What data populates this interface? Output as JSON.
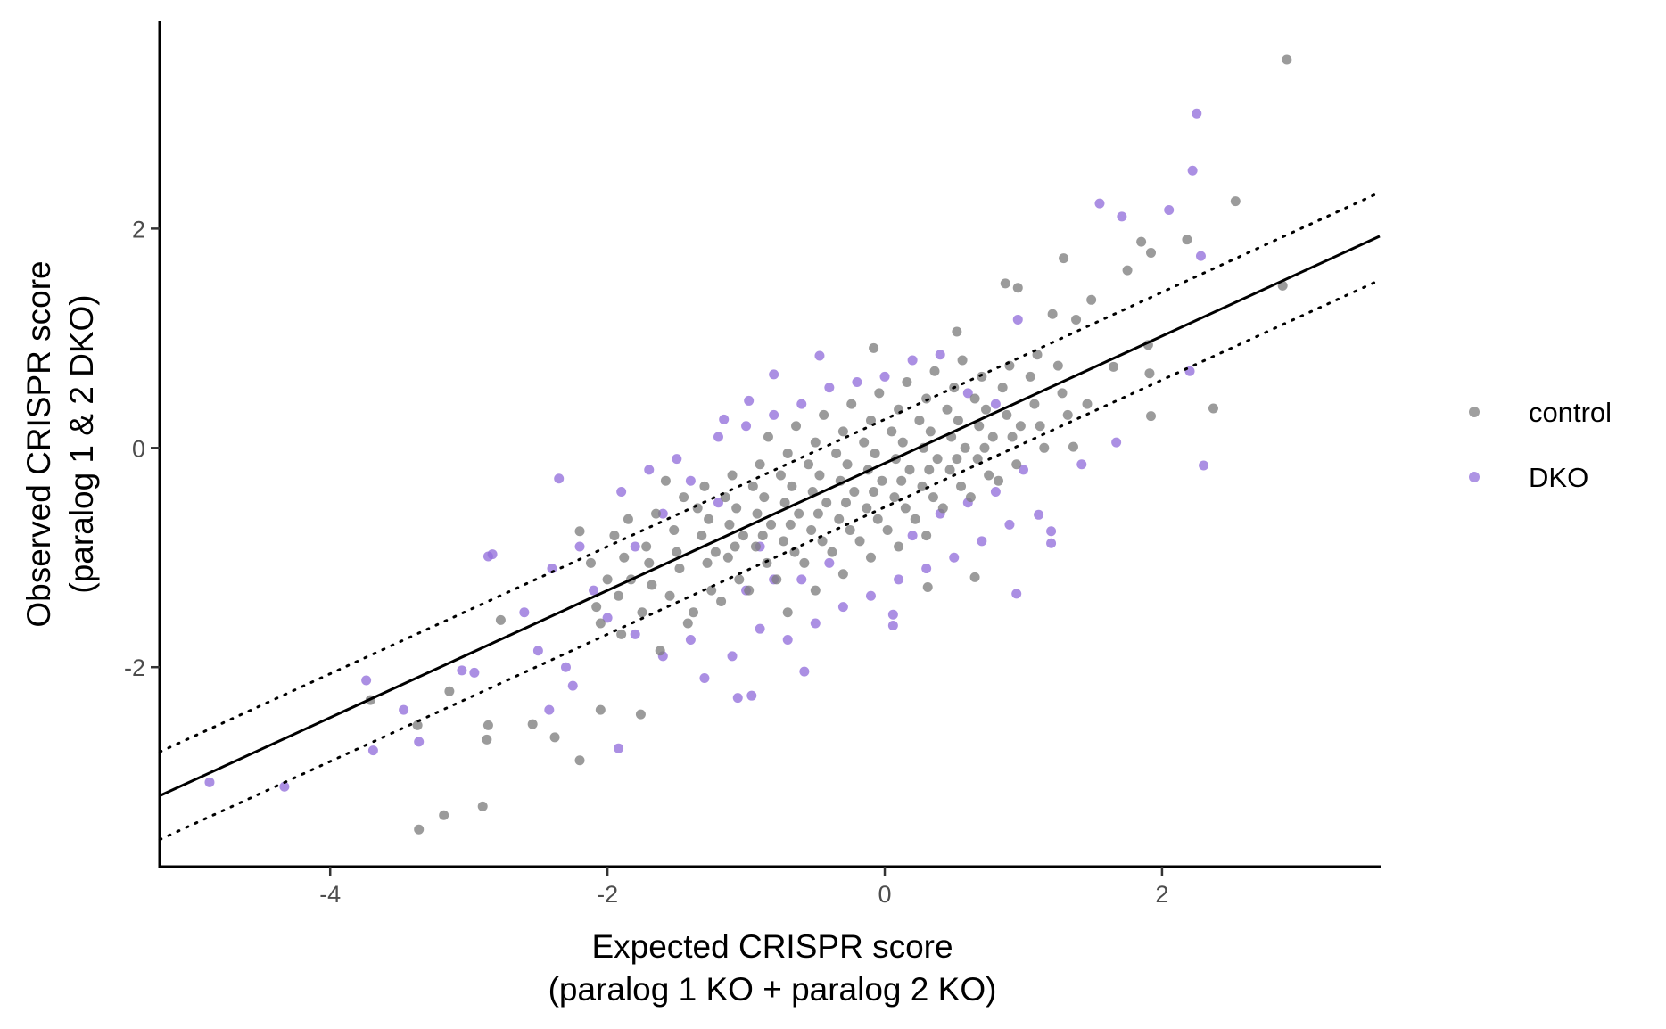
{
  "chart_data": {
    "type": "scatter",
    "title": "",
    "xlabel": "Expected CRISPR score",
    "xlabel2": "(paralog 1 KO + paralog 2 KO)",
    "ylabel": "Observed CRISPR score",
    "ylabel2": "(paralog 1 & 2 DKO)",
    "xlim": [
      -5.23,
      3.57
    ],
    "ylim": [
      -3.82,
      3.89
    ],
    "xticks": [
      -4,
      -2,
      0,
      2
    ],
    "yticks": [
      -2,
      0,
      2
    ],
    "xtick_labels": [
      "-4",
      "-2",
      "0",
      "2"
    ],
    "ytick_labels": [
      "-2",
      "0",
      "2"
    ],
    "grid": false,
    "legend_position": "right",
    "fit_line": {
      "slope": 0.58,
      "intercept": -0.14,
      "style": "solid"
    },
    "band_lines": [
      {
        "offset": 0.4,
        "style": "dotted"
      },
      {
        "offset": -0.4,
        "style": "dotted"
      }
    ],
    "series": [
      {
        "name": "DKO",
        "color": "#9370DB",
        "points": [
          [
            2.25,
            3.05
          ],
          [
            2.22,
            2.53
          ],
          [
            1.55,
            2.23
          ],
          [
            1.71,
            2.11
          ],
          [
            2.05,
            2.17
          ],
          [
            2.28,
            1.75
          ],
          [
            2.2,
            0.7
          ],
          [
            2.3,
            -0.16
          ],
          [
            1.67,
            0.05
          ],
          [
            1.42,
            -0.15
          ],
          [
            0.96,
            1.17
          ],
          [
            0.95,
            -1.33
          ],
          [
            1.2,
            -0.76
          ],
          [
            1.2,
            -0.87
          ],
          [
            1.11,
            -0.61
          ],
          [
            -4.87,
            -3.05
          ],
          [
            -4.33,
            -3.09
          ],
          [
            -3.74,
            -2.12
          ],
          [
            -3.69,
            -2.76
          ],
          [
            -3.47,
            -2.39
          ],
          [
            -3.36,
            -2.68
          ],
          [
            -3.05,
            -2.03
          ],
          [
            -2.96,
            -2.05
          ],
          [
            -2.86,
            -0.99
          ],
          [
            -2.83,
            -0.97
          ],
          [
            -2.35,
            -0.28
          ],
          [
            -1.92,
            -2.74
          ],
          [
            -1.06,
            -2.28
          ],
          [
            -0.96,
            -2.26
          ],
          [
            -0.58,
            -2.04
          ],
          [
            -2.42,
            -2.39
          ],
          [
            -2.25,
            -2.17
          ],
          [
            -0.47,
            0.84
          ],
          [
            -0.8,
            0.67
          ],
          [
            -1.16,
            0.26
          ],
          [
            -0.98,
            0.43
          ],
          [
            0.06,
            -1.62
          ],
          [
            0.06,
            -1.52
          ],
          [
            -2.2,
            -0.9
          ],
          [
            -1.9,
            -0.4
          ],
          [
            -1.7,
            -0.2
          ],
          [
            -1.5,
            -0.1
          ],
          [
            -1.6,
            -1.9
          ],
          [
            -1.4,
            -1.75
          ],
          [
            -1.3,
            -2.1
          ],
          [
            -1.1,
            -1.9
          ],
          [
            -0.9,
            -1.65
          ],
          [
            -0.7,
            -1.75
          ],
          [
            -0.5,
            -1.6
          ],
          [
            -0.3,
            -1.45
          ],
          [
            -0.1,
            -1.35
          ],
          [
            0.1,
            -1.2
          ],
          [
            0.3,
            -1.1
          ],
          [
            0.5,
            -1.0
          ],
          [
            0.7,
            -0.85
          ],
          [
            0.9,
            -0.7
          ],
          [
            -1.2,
            0.1
          ],
          [
            -1.0,
            0.2
          ],
          [
            -0.8,
            0.3
          ],
          [
            -0.6,
            0.4
          ],
          [
            -0.4,
            0.55
          ],
          [
            -0.2,
            0.6
          ],
          [
            0.0,
            0.65
          ],
          [
            0.2,
            0.8
          ],
          [
            0.4,
            0.85
          ],
          [
            0.6,
            0.5
          ],
          [
            0.8,
            0.4
          ],
          [
            -2.4,
            -1.1
          ],
          [
            -2.6,
            -1.5
          ],
          [
            -2.5,
            -1.85
          ],
          [
            -2.3,
            -2.0
          ],
          [
            -2.0,
            -1.55
          ],
          [
            -1.8,
            -1.7
          ],
          [
            -1.0,
            -1.3
          ],
          [
            -0.8,
            -1.2
          ],
          [
            -0.6,
            -1.2
          ],
          [
            -0.4,
            -1.05
          ],
          [
            0.2,
            -0.8
          ],
          [
            0.4,
            -0.6
          ],
          [
            0.6,
            -0.5
          ],
          [
            0.8,
            -0.4
          ],
          [
            1.0,
            -0.2
          ],
          [
            -1.6,
            -0.6
          ],
          [
            -1.4,
            -0.3
          ],
          [
            -1.8,
            -0.9
          ],
          [
            -2.1,
            -1.3
          ],
          [
            -1.2,
            -0.5
          ],
          [
            -0.9,
            -0.9
          ]
        ]
      },
      {
        "name": "control",
        "color": "#7F7F7F",
        "points": [
          [
            2.9,
            3.54
          ],
          [
            2.53,
            2.25
          ],
          [
            2.87,
            1.48
          ],
          [
            2.37,
            0.36
          ],
          [
            1.92,
            0.29
          ],
          [
            1.91,
            0.68
          ],
          [
            1.9,
            0.94
          ],
          [
            2.18,
            1.9
          ],
          [
            1.92,
            1.78
          ],
          [
            1.85,
            1.88
          ],
          [
            1.75,
            1.62
          ],
          [
            1.29,
            1.73
          ],
          [
            1.49,
            1.35
          ],
          [
            0.87,
            1.5
          ],
          [
            0.96,
            1.46
          ],
          [
            1.21,
            1.22
          ],
          [
            1.38,
            1.17
          ],
          [
            1.65,
            0.74
          ],
          [
            1.36,
            0.01
          ],
          [
            1.46,
            0.4
          ],
          [
            -3.36,
            -3.48
          ],
          [
            -3.18,
            -3.35
          ],
          [
            -2.9,
            -3.27
          ],
          [
            -2.2,
            -2.85
          ],
          [
            -2.87,
            -2.66
          ],
          [
            -2.86,
            -2.53
          ],
          [
            -3.71,
            -2.3
          ],
          [
            -3.14,
            -2.22
          ],
          [
            -2.77,
            -1.57
          ],
          [
            -2.38,
            -2.64
          ],
          [
            -2.54,
            -2.52
          ],
          [
            -2.05,
            -2.39
          ],
          [
            -1.76,
            -2.43
          ],
          [
            -2.2,
            -0.76
          ],
          [
            -3.37,
            -2.53
          ],
          [
            0.31,
            -1.27
          ],
          [
            0.65,
            -1.18
          ],
          [
            0.52,
            1.06
          ],
          [
            -0.08,
            0.91
          ],
          [
            -2.12,
            -1.05
          ],
          [
            -2.05,
            -1.6
          ],
          [
            -2.0,
            -1.2
          ],
          [
            -1.95,
            -0.8
          ],
          [
            -2.08,
            -1.45
          ],
          [
            -1.88,
            -1.0
          ],
          [
            -1.92,
            -1.35
          ],
          [
            -1.85,
            -0.65
          ],
          [
            -1.9,
            -1.7
          ],
          [
            -1.83,
            -1.2
          ],
          [
            -1.72,
            -0.9
          ],
          [
            -1.68,
            -1.25
          ],
          [
            -1.75,
            -1.5
          ],
          [
            -1.65,
            -0.6
          ],
          [
            -1.7,
            -1.05
          ],
          [
            -1.62,
            -1.85
          ],
          [
            -1.52,
            -0.75
          ],
          [
            -1.48,
            -1.1
          ],
          [
            -1.55,
            -1.35
          ],
          [
            -1.45,
            -0.45
          ],
          [
            -1.5,
            -0.95
          ],
          [
            -1.42,
            -1.6
          ],
          [
            -1.58,
            -0.3
          ],
          [
            -1.32,
            -0.8
          ],
          [
            -1.28,
            -1.05
          ],
          [
            -1.35,
            -0.55
          ],
          [
            -1.25,
            -1.3
          ],
          [
            -1.3,
            -0.35
          ],
          [
            -1.22,
            -0.95
          ],
          [
            -1.38,
            -1.5
          ],
          [
            -1.27,
            -0.65
          ],
          [
            -1.12,
            -0.7
          ],
          [
            -1.08,
            -0.9
          ],
          [
            -1.15,
            -0.45
          ],
          [
            -1.05,
            -1.2
          ],
          [
            -1.1,
            -0.25
          ],
          [
            -1.02,
            -0.8
          ],
          [
            -1.18,
            -1.4
          ],
          [
            -1.07,
            -0.55
          ],
          [
            -1.13,
            -1.0
          ],
          [
            -0.92,
            -0.6
          ],
          [
            -0.88,
            -0.8
          ],
          [
            -0.95,
            -0.35
          ],
          [
            -0.85,
            -1.05
          ],
          [
            -0.9,
            -0.15
          ],
          [
            -0.82,
            -0.7
          ],
          [
            -0.98,
            -1.3
          ],
          [
            -0.87,
            -0.45
          ],
          [
            -0.93,
            -0.9
          ],
          [
            -0.84,
            0.1
          ],
          [
            -0.72,
            -0.5
          ],
          [
            -0.68,
            -0.7
          ],
          [
            -0.75,
            -0.25
          ],
          [
            -0.65,
            -0.95
          ],
          [
            -0.7,
            -0.05
          ],
          [
            -0.62,
            -0.6
          ],
          [
            -0.78,
            -1.2
          ],
          [
            -0.67,
            -0.35
          ],
          [
            -0.73,
            -0.85
          ],
          [
            -0.64,
            0.2
          ],
          [
            -0.7,
            -1.5
          ],
          [
            -0.52,
            -0.4
          ],
          [
            -0.48,
            -0.6
          ],
          [
            -0.55,
            -0.15
          ],
          [
            -0.45,
            -0.85
          ],
          [
            -0.5,
            0.05
          ],
          [
            -0.42,
            -0.5
          ],
          [
            -0.58,
            -1.05
          ],
          [
            -0.47,
            -0.25
          ],
          [
            -0.53,
            -0.75
          ],
          [
            -0.44,
            0.3
          ],
          [
            -0.5,
            -1.3
          ],
          [
            -0.32,
            -0.3
          ],
          [
            -0.28,
            -0.5
          ],
          [
            -0.35,
            -0.05
          ],
          [
            -0.25,
            -0.75
          ],
          [
            -0.3,
            0.15
          ],
          [
            -0.22,
            -0.4
          ],
          [
            -0.38,
            -0.95
          ],
          [
            -0.27,
            -0.15
          ],
          [
            -0.33,
            -0.65
          ],
          [
            -0.24,
            0.4
          ],
          [
            -0.3,
            -1.15
          ],
          [
            -0.12,
            -0.2
          ],
          [
            -0.08,
            -0.4
          ],
          [
            -0.15,
            0.05
          ],
          [
            -0.05,
            -0.65
          ],
          [
            -0.1,
            0.25
          ],
          [
            -0.02,
            -0.3
          ],
          [
            -0.18,
            -0.85
          ],
          [
            -0.07,
            -0.05
          ],
          [
            -0.13,
            -0.55
          ],
          [
            -0.04,
            0.5
          ],
          [
            -0.1,
            -1.0
          ],
          [
            0.08,
            -0.1
          ],
          [
            0.12,
            -0.3
          ],
          [
            0.05,
            0.15
          ],
          [
            0.15,
            -0.55
          ],
          [
            0.1,
            0.35
          ],
          [
            0.18,
            -0.2
          ],
          [
            0.02,
            -0.75
          ],
          [
            0.13,
            0.05
          ],
          [
            0.07,
            -0.45
          ],
          [
            0.16,
            0.6
          ],
          [
            0.1,
            -0.9
          ],
          [
            0.28,
            0.0
          ],
          [
            0.32,
            -0.2
          ],
          [
            0.25,
            0.25
          ],
          [
            0.35,
            -0.45
          ],
          [
            0.3,
            0.45
          ],
          [
            0.38,
            -0.1
          ],
          [
            0.22,
            -0.65
          ],
          [
            0.33,
            0.15
          ],
          [
            0.27,
            -0.35
          ],
          [
            0.36,
            0.7
          ],
          [
            0.3,
            -0.8
          ],
          [
            0.48,
            0.1
          ],
          [
            0.52,
            -0.1
          ],
          [
            0.45,
            0.35
          ],
          [
            0.55,
            -0.35
          ],
          [
            0.5,
            0.55
          ],
          [
            0.58,
            0.0
          ],
          [
            0.42,
            -0.55
          ],
          [
            0.53,
            0.25
          ],
          [
            0.47,
            -0.2
          ],
          [
            0.56,
            0.8
          ],
          [
            0.68,
            0.2
          ],
          [
            0.72,
            0.0
          ],
          [
            0.65,
            0.45
          ],
          [
            0.75,
            -0.25
          ],
          [
            0.7,
            0.65
          ],
          [
            0.78,
            0.1
          ],
          [
            0.62,
            -0.45
          ],
          [
            0.73,
            0.35
          ],
          [
            0.67,
            -0.1
          ],
          [
            0.88,
            0.3
          ],
          [
            0.92,
            0.1
          ],
          [
            0.85,
            0.55
          ],
          [
            0.95,
            -0.15
          ],
          [
            0.9,
            0.75
          ],
          [
            0.98,
            0.2
          ],
          [
            0.82,
            -0.3
          ],
          [
            1.08,
            0.4
          ],
          [
            1.12,
            0.2
          ],
          [
            1.05,
            0.65
          ],
          [
            1.15,
            0.0
          ],
          [
            1.1,
            0.85
          ],
          [
            1.28,
            0.5
          ],
          [
            1.32,
            0.3
          ],
          [
            1.25,
            0.75
          ]
        ]
      }
    ],
    "legend": [
      {
        "label": "control",
        "color": "#7F7F7F"
      },
      {
        "label": "DKO",
        "color": "#9370DB"
      }
    ]
  }
}
